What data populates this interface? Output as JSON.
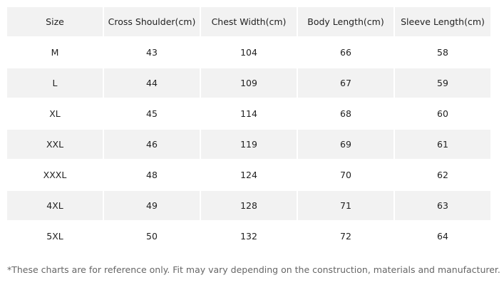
{
  "table": {
    "header": [
      "Size",
      "Cross Shoulder(cm)",
      "Chest Width(cm)",
      "Body Length(cm)",
      "Sleeve Length(cm)"
    ],
    "rows": [
      [
        "M",
        43,
        104,
        66,
        58
      ],
      [
        "L",
        44,
        109,
        67,
        59
      ],
      [
        "XL",
        45,
        114,
        68,
        60
      ],
      [
        "XXL",
        46,
        119,
        69,
        61
      ],
      [
        "XXXL",
        48,
        124,
        70,
        62
      ],
      [
        "4XL",
        49,
        128,
        71,
        63
      ],
      [
        "5XL",
        50,
        132,
        72,
        64
      ]
    ]
  },
  "footnote": "*These charts are for reference only. Fit may vary depending on the construction, materials and manufacturer."
}
